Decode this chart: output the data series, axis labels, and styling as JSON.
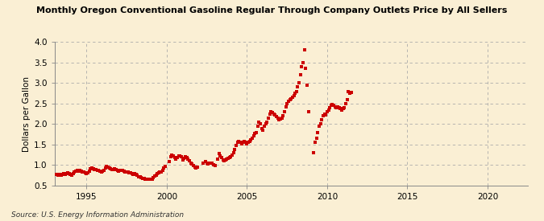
{
  "title": "Monthly Oregon Conventional Gasoline Regular Through Company Outlets Price by All Sellers",
  "ylabel": "Dollars per Gallon",
  "source": "Source: U.S. Energy Information Administration",
  "background_color": "#faefd4",
  "plot_bg_color": "#faefd4",
  "dot_color": "#cc0000",
  "xlim": [
    1993.0,
    2022.5
  ],
  "ylim": [
    0.5,
    4.0
  ],
  "xticks": [
    1995,
    2000,
    2005,
    2010,
    2015,
    2020
  ],
  "yticks": [
    0.5,
    1.0,
    1.5,
    2.0,
    2.5,
    3.0,
    3.5,
    4.0
  ],
  "data": [
    [
      1993.08,
      0.77
    ],
    [
      1993.17,
      0.78
    ],
    [
      1993.25,
      0.76
    ],
    [
      1993.33,
      0.77
    ],
    [
      1993.42,
      0.76
    ],
    [
      1993.5,
      0.78
    ],
    [
      1993.58,
      0.79
    ],
    [
      1993.67,
      0.78
    ],
    [
      1993.75,
      0.79
    ],
    [
      1993.83,
      0.82
    ],
    [
      1993.92,
      0.8
    ],
    [
      1994.0,
      0.78
    ],
    [
      1994.08,
      0.76
    ],
    [
      1994.17,
      0.79
    ],
    [
      1994.25,
      0.83
    ],
    [
      1994.33,
      0.86
    ],
    [
      1994.42,
      0.87
    ],
    [
      1994.5,
      0.86
    ],
    [
      1994.58,
      0.88
    ],
    [
      1994.67,
      0.85
    ],
    [
      1994.75,
      0.83
    ],
    [
      1994.83,
      0.84
    ],
    [
      1994.92,
      0.82
    ],
    [
      1995.0,
      0.8
    ],
    [
      1995.08,
      0.82
    ],
    [
      1995.17,
      0.86
    ],
    [
      1995.25,
      0.92
    ],
    [
      1995.33,
      0.94
    ],
    [
      1995.42,
      0.92
    ],
    [
      1995.5,
      0.9
    ],
    [
      1995.58,
      0.89
    ],
    [
      1995.67,
      0.88
    ],
    [
      1995.75,
      0.87
    ],
    [
      1995.83,
      0.85
    ],
    [
      1995.92,
      0.84
    ],
    [
      1996.0,
      0.85
    ],
    [
      1996.08,
      0.88
    ],
    [
      1996.17,
      0.93
    ],
    [
      1996.25,
      0.97
    ],
    [
      1996.33,
      0.96
    ],
    [
      1996.42,
      0.94
    ],
    [
      1996.5,
      0.92
    ],
    [
      1996.58,
      0.9
    ],
    [
      1996.67,
      0.9
    ],
    [
      1996.75,
      0.92
    ],
    [
      1996.83,
      0.9
    ],
    [
      1996.92,
      0.87
    ],
    [
      1997.0,
      0.85
    ],
    [
      1997.08,
      0.88
    ],
    [
      1997.17,
      0.88
    ],
    [
      1997.25,
      0.87
    ],
    [
      1997.33,
      0.86
    ],
    [
      1997.42,
      0.84
    ],
    [
      1997.5,
      0.83
    ],
    [
      1997.58,
      0.83
    ],
    [
      1997.67,
      0.82
    ],
    [
      1997.75,
      0.82
    ],
    [
      1997.83,
      0.8
    ],
    [
      1997.92,
      0.78
    ],
    [
      1998.0,
      0.79
    ],
    [
      1998.08,
      0.78
    ],
    [
      1998.17,
      0.75
    ],
    [
      1998.25,
      0.72
    ],
    [
      1998.33,
      0.71
    ],
    [
      1998.42,
      0.7
    ],
    [
      1998.5,
      0.68
    ],
    [
      1998.58,
      0.67
    ],
    [
      1998.67,
      0.66
    ],
    [
      1998.75,
      0.65
    ],
    [
      1998.83,
      0.66
    ],
    [
      1998.92,
      0.65
    ],
    [
      1999.0,
      0.65
    ],
    [
      1999.08,
      0.66
    ],
    [
      1999.17,
      0.7
    ],
    [
      1999.25,
      0.74
    ],
    [
      1999.33,
      0.76
    ],
    [
      1999.42,
      0.79
    ],
    [
      1999.5,
      0.82
    ],
    [
      1999.58,
      0.83
    ],
    [
      1999.67,
      0.84
    ],
    [
      1999.75,
      0.88
    ],
    [
      1999.83,
      0.93
    ],
    [
      1999.92,
      0.97
    ],
    [
      2000.17,
      1.08
    ],
    [
      2000.25,
      1.2
    ],
    [
      2000.33,
      1.25
    ],
    [
      2000.42,
      1.22
    ],
    [
      2000.5,
      1.18
    ],
    [
      2000.58,
      1.15
    ],
    [
      2000.67,
      1.18
    ],
    [
      2000.75,
      1.22
    ],
    [
      2000.83,
      1.23
    ],
    [
      2000.92,
      1.2
    ],
    [
      2001.0,
      1.13
    ],
    [
      2001.08,
      1.16
    ],
    [
      2001.17,
      1.2
    ],
    [
      2001.25,
      1.18
    ],
    [
      2001.33,
      1.15
    ],
    [
      2001.42,
      1.1
    ],
    [
      2001.5,
      1.05
    ],
    [
      2001.58,
      1.02
    ],
    [
      2001.67,
      0.99
    ],
    [
      2001.75,
      0.96
    ],
    [
      2001.83,
      0.94
    ],
    [
      2001.92,
      0.95
    ],
    [
      2002.25,
      1.05
    ],
    [
      2002.42,
      1.08
    ],
    [
      2002.5,
      1.05
    ],
    [
      2002.58,
      1.02
    ],
    [
      2002.67,
      1.04
    ],
    [
      2002.75,
      1.05
    ],
    [
      2002.83,
      1.04
    ],
    [
      2002.92,
      1.0
    ],
    [
      2003.0,
      0.98
    ],
    [
      2003.17,
      1.15
    ],
    [
      2003.25,
      1.28
    ],
    [
      2003.33,
      1.22
    ],
    [
      2003.42,
      1.18
    ],
    [
      2003.5,
      1.12
    ],
    [
      2003.58,
      1.1
    ],
    [
      2003.67,
      1.12
    ],
    [
      2003.75,
      1.14
    ],
    [
      2003.83,
      1.16
    ],
    [
      2003.92,
      1.18
    ],
    [
      2004.0,
      1.2
    ],
    [
      2004.08,
      1.25
    ],
    [
      2004.17,
      1.3
    ],
    [
      2004.25,
      1.38
    ],
    [
      2004.33,
      1.48
    ],
    [
      2004.42,
      1.55
    ],
    [
      2004.5,
      1.58
    ],
    [
      2004.58,
      1.55
    ],
    [
      2004.67,
      1.52
    ],
    [
      2004.75,
      1.55
    ],
    [
      2004.83,
      1.58
    ],
    [
      2004.92,
      1.55
    ],
    [
      2005.0,
      1.52
    ],
    [
      2005.08,
      1.55
    ],
    [
      2005.17,
      1.58
    ],
    [
      2005.25,
      1.62
    ],
    [
      2005.33,
      1.65
    ],
    [
      2005.42,
      1.72
    ],
    [
      2005.5,
      1.78
    ],
    [
      2005.58,
      1.8
    ],
    [
      2005.67,
      1.95
    ],
    [
      2005.75,
      2.05
    ],
    [
      2005.83,
      2.0
    ],
    [
      2005.92,
      1.9
    ],
    [
      2006.0,
      1.85
    ],
    [
      2006.08,
      1.95
    ],
    [
      2006.17,
      2.0
    ],
    [
      2006.25,
      2.05
    ],
    [
      2006.33,
      2.15
    ],
    [
      2006.42,
      2.25
    ],
    [
      2006.5,
      2.3
    ],
    [
      2006.58,
      2.28
    ],
    [
      2006.67,
      2.25
    ],
    [
      2006.75,
      2.22
    ],
    [
      2006.83,
      2.18
    ],
    [
      2006.92,
      2.15
    ],
    [
      2007.0,
      2.1
    ],
    [
      2007.08,
      2.12
    ],
    [
      2007.17,
      2.15
    ],
    [
      2007.25,
      2.2
    ],
    [
      2007.33,
      2.3
    ],
    [
      2007.42,
      2.42
    ],
    [
      2007.5,
      2.5
    ],
    [
      2007.58,
      2.55
    ],
    [
      2007.67,
      2.6
    ],
    [
      2007.75,
      2.62
    ],
    [
      2007.83,
      2.65
    ],
    [
      2007.92,
      2.7
    ],
    [
      2008.0,
      2.75
    ],
    [
      2008.08,
      2.8
    ],
    [
      2008.17,
      2.9
    ],
    [
      2008.25,
      3.0
    ],
    [
      2008.33,
      3.2
    ],
    [
      2008.42,
      3.4
    ],
    [
      2008.5,
      3.5
    ],
    [
      2008.58,
      3.8
    ],
    [
      2008.67,
      3.35
    ],
    [
      2008.75,
      2.95
    ],
    [
      2008.83,
      2.3
    ],
    [
      2009.17,
      1.3
    ],
    [
      2009.25,
      1.55
    ],
    [
      2009.33,
      1.65
    ],
    [
      2009.42,
      1.8
    ],
    [
      2009.5,
      1.95
    ],
    [
      2009.58,
      2.0
    ],
    [
      2009.67,
      2.1
    ],
    [
      2009.75,
      2.2
    ],
    [
      2009.83,
      2.25
    ],
    [
      2009.92,
      2.22
    ],
    [
      2010.0,
      2.3
    ],
    [
      2010.08,
      2.35
    ],
    [
      2010.17,
      2.4
    ],
    [
      2010.25,
      2.45
    ],
    [
      2010.33,
      2.48
    ],
    [
      2010.42,
      2.45
    ],
    [
      2010.5,
      2.42
    ],
    [
      2010.58,
      2.4
    ],
    [
      2010.67,
      2.42
    ],
    [
      2010.75,
      2.4
    ],
    [
      2010.83,
      2.38
    ],
    [
      2010.92,
      2.35
    ],
    [
      2011.0,
      2.38
    ],
    [
      2011.08,
      2.4
    ],
    [
      2011.17,
      2.5
    ],
    [
      2011.25,
      2.6
    ],
    [
      2011.33,
      2.8
    ],
    [
      2011.42,
      2.75
    ],
    [
      2011.5,
      2.78
    ]
  ]
}
